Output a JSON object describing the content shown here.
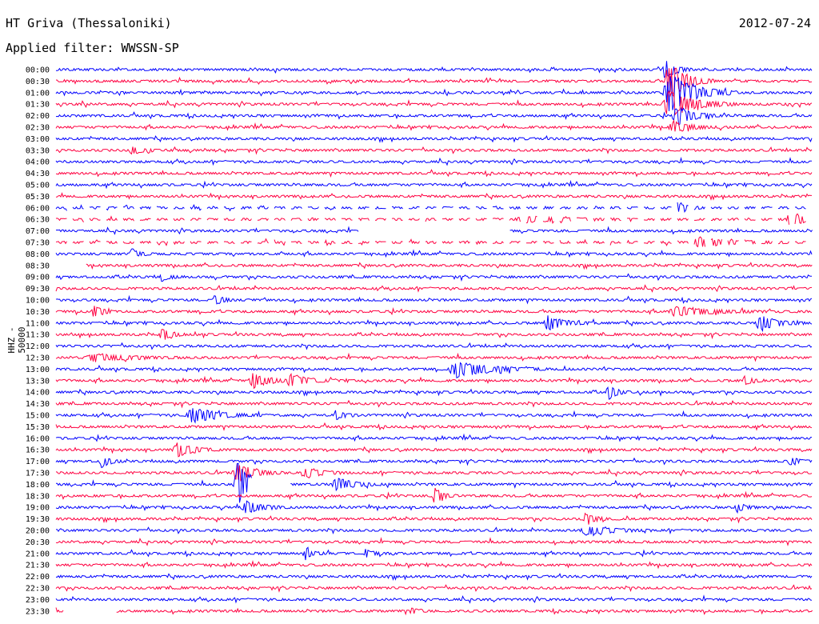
{
  "header": {
    "station": "HT Griva (Thessaloniki)",
    "date": "2012-07-24",
    "filter": "Applied filter: WWSSN-SP"
  },
  "chart_data": {
    "type": "line",
    "title": "HT Griva (Thessaloniki)",
    "ylabel": "HHZ - 50000",
    "colors": [
      "#0000ff",
      "#ff0040"
    ],
    "row_labels": [
      "00:00",
      "00:30",
      "01:00",
      "01:30",
      "02:00",
      "02:30",
      "03:00",
      "03:30",
      "04:00",
      "04:30",
      "05:00",
      "05:30",
      "06:00",
      "06:30",
      "07:00",
      "07:30",
      "08:00",
      "08:30",
      "09:00",
      "09:30",
      "10:00",
      "10:30",
      "11:00",
      "11:30",
      "12:00",
      "12:30",
      "13:00",
      "13:30",
      "14:00",
      "14:30",
      "15:00",
      "15:30",
      "16:00",
      "16:30",
      "17:00",
      "17:30",
      "18:00",
      "18:30",
      "19:00",
      "19:30",
      "20:00",
      "20:30",
      "21:00",
      "21:30",
      "22:00",
      "22:30",
      "23:00",
      "23:30"
    ],
    "events": [
      {
        "row": 0,
        "pos": 0.805,
        "amp": 14,
        "width": 0.012
      },
      {
        "row": 1,
        "pos": 0.81,
        "amp": 26,
        "width": 0.02
      },
      {
        "row": 2,
        "pos": 0.81,
        "amp": 26,
        "width": 0.03
      },
      {
        "row": 3,
        "pos": 0.81,
        "amp": 18,
        "width": 0.03
      },
      {
        "row": 4,
        "pos": 0.82,
        "amp": 12,
        "width": 0.02
      },
      {
        "row": 5,
        "pos": 0.815,
        "amp": 8,
        "width": 0.02
      },
      {
        "row": 7,
        "pos": 0.1,
        "amp": 6,
        "width": 0.01
      },
      {
        "row": 12,
        "pos": 0.82,
        "amp": 10,
        "width": 0.01
      },
      {
        "row": 13,
        "pos": 0.97,
        "amp": 12,
        "width": 0.015
      },
      {
        "row": 13,
        "pos": 0.62,
        "amp": 4,
        "width": 0.05
      },
      {
        "row": 15,
        "pos": 0.85,
        "amp": 6,
        "width": 0.04
      },
      {
        "row": 16,
        "pos": 0.1,
        "amp": 6,
        "width": 0.01
      },
      {
        "row": 18,
        "pos": 0.14,
        "amp": 5,
        "width": 0.01
      },
      {
        "row": 20,
        "pos": 0.21,
        "amp": 7,
        "width": 0.01
      },
      {
        "row": 21,
        "pos": 0.05,
        "amp": 9,
        "width": 0.01
      },
      {
        "row": 21,
        "pos": 0.82,
        "amp": 6,
        "width": 0.04
      },
      {
        "row": 22,
        "pos": 0.65,
        "amp": 9,
        "width": 0.02
      },
      {
        "row": 22,
        "pos": 0.93,
        "amp": 10,
        "width": 0.02
      },
      {
        "row": 23,
        "pos": 0.14,
        "amp": 10,
        "width": 0.01
      },
      {
        "row": 25,
        "pos": 0.05,
        "amp": 5,
        "width": 0.04
      },
      {
        "row": 26,
        "pos": 0.53,
        "amp": 10,
        "width": 0.04
      },
      {
        "row": 27,
        "pos": 0.26,
        "amp": 9,
        "width": 0.02
      },
      {
        "row": 27,
        "pos": 0.31,
        "amp": 9,
        "width": 0.02
      },
      {
        "row": 27,
        "pos": 0.91,
        "amp": 6,
        "width": 0.01
      },
      {
        "row": 28,
        "pos": 0.73,
        "amp": 10,
        "width": 0.01
      },
      {
        "row": 30,
        "pos": 0.18,
        "amp": 10,
        "width": 0.03
      },
      {
        "row": 30,
        "pos": 0.37,
        "amp": 6,
        "width": 0.01
      },
      {
        "row": 33,
        "pos": 0.16,
        "amp": 9,
        "width": 0.02
      },
      {
        "row": 34,
        "pos": 0.06,
        "amp": 8,
        "width": 0.01
      },
      {
        "row": 34,
        "pos": 0.97,
        "amp": 6,
        "width": 0.01
      },
      {
        "row": 35,
        "pos": 0.24,
        "amp": 12,
        "width": 0.02
      },
      {
        "row": 35,
        "pos": 0.33,
        "amp": 6,
        "width": 0.02
      },
      {
        "row": 36,
        "pos": 0.24,
        "amp": 28,
        "width": 0.02
      },
      {
        "row": 36,
        "pos": 0.37,
        "amp": 9,
        "width": 0.02
      },
      {
        "row": 37,
        "pos": 0.5,
        "amp": 10,
        "width": 0.01
      },
      {
        "row": 38,
        "pos": 0.25,
        "amp": 8,
        "width": 0.02
      },
      {
        "row": 38,
        "pos": 0.9,
        "amp": 6,
        "width": 0.01
      },
      {
        "row": 39,
        "pos": 0.7,
        "amp": 9,
        "width": 0.01
      },
      {
        "row": 40,
        "pos": 0.7,
        "amp": 6,
        "width": 0.03
      },
      {
        "row": 42,
        "pos": 0.33,
        "amp": 6,
        "width": 0.01
      },
      {
        "row": 42,
        "pos": 0.41,
        "amp": 5,
        "width": 0.01
      },
      {
        "row": 47,
        "pos": 0.47,
        "amp": 4,
        "width": 0.01
      }
    ],
    "gaps": [
      {
        "row": 1,
        "start": 0.0,
        "end": 0.0
      }
    ],
    "partial_rows": [
      {
        "row": 14,
        "start": 0.0,
        "end": 0.4
      },
      {
        "row": 14,
        "start": 0.6,
        "end": 1.0
      },
      {
        "row": 17,
        "start": 0.04,
        "end": 1.0
      },
      {
        "row": 36,
        "start": 0.0,
        "end": 0.26
      },
      {
        "row": 36,
        "start": 0.31,
        "end": 1.0
      },
      {
        "row": 47,
        "start": 0.0,
        "end": 0.01
      },
      {
        "row": 47,
        "start": 0.08,
        "end": 1.0
      }
    ],
    "dashed_rows": [
      12,
      13,
      15
    ]
  }
}
